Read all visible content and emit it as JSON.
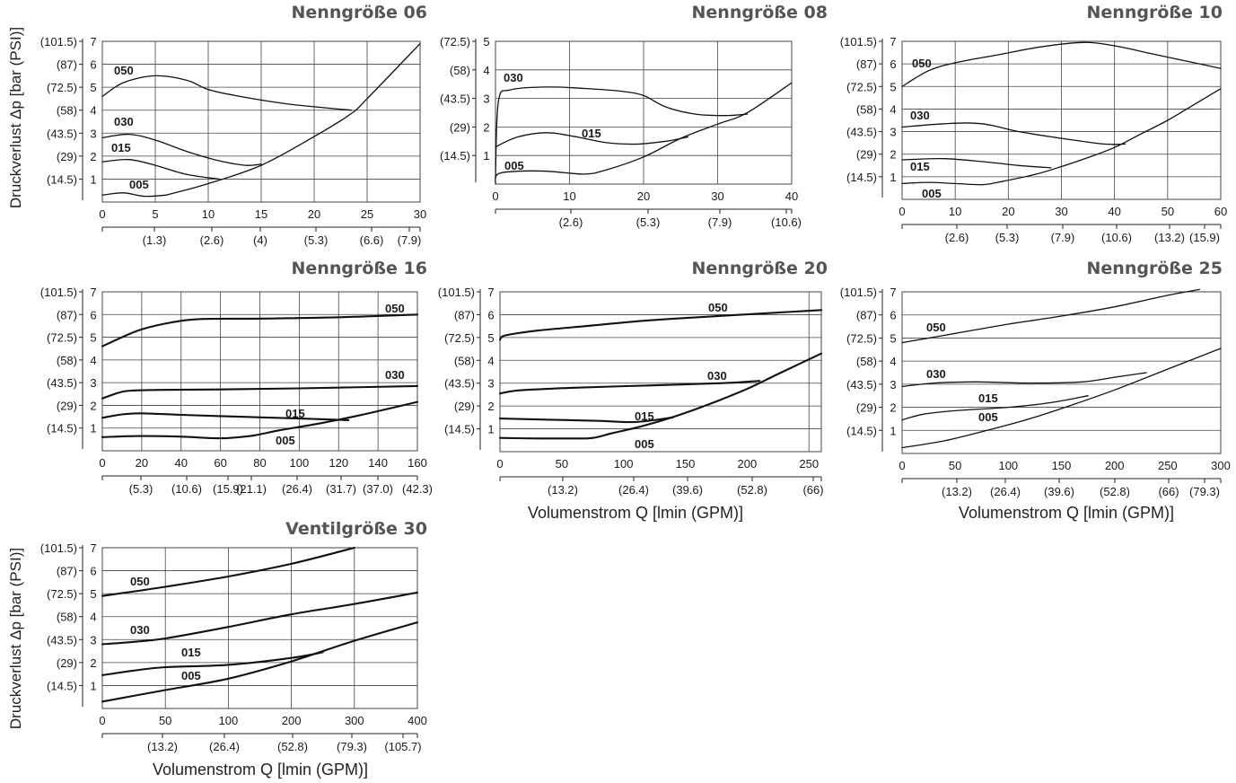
{
  "chart_data": [
    {
      "type": "line",
      "title": "Nenngröße 06",
      "ylabel": "Druckverlust Δp [bar (PSI)]",
      "xlabel": "",
      "xlim": [
        0,
        30
      ],
      "ylim": [
        0,
        7
      ],
      "x_ticks": [
        "0",
        "5",
        "10",
        "15",
        "20",
        "25",
        "30"
      ],
      "x_secondary_ticks": [
        "(1.3)",
        "(2.6)",
        "(4)",
        "(5.3)",
        "(6.6)",
        "(7.9)"
      ],
      "y_ticks": [
        "1",
        "2",
        "3",
        "4",
        "5",
        "6",
        "7"
      ],
      "y_secondary_ticks": [
        "(14.5)",
        "(29)",
        "(43.5)",
        "(58)",
        "(72.5)",
        "(87)",
        "(101.5)"
      ],
      "series": [
        {
          "name": "050",
          "x": [
            0,
            2,
            5,
            8,
            10,
            13,
            17,
            20,
            23.5
          ],
          "y": [
            4.6,
            5.2,
            5.5,
            5.3,
            4.9,
            4.6,
            4.3,
            4.15,
            4.0
          ]
        },
        {
          "name": "030",
          "x": [
            0,
            2.5,
            5,
            8,
            11,
            13.5,
            15
          ],
          "y": [
            2.8,
            2.95,
            2.7,
            2.2,
            1.8,
            1.6,
            1.65
          ]
        },
        {
          "name": "015",
          "x": [
            0,
            2.5,
            5,
            8,
            11
          ],
          "y": [
            1.75,
            1.85,
            1.6,
            1.2,
            1.0
          ]
        },
        {
          "name": "005",
          "x": [
            0,
            2,
            4,
            6
          ],
          "y": [
            0.3,
            0.4,
            0.25,
            0.3
          ]
        },
        {
          "name": "",
          "x": [
            6,
            10,
            15,
            20,
            23.5,
            25,
            30
          ],
          "y": [
            0.3,
            0.8,
            1.6,
            2.85,
            3.85,
            4.5,
            6.9
          ]
        }
      ]
    },
    {
      "type": "line",
      "title": "Nenngröße 08",
      "xlabel": "",
      "xlim": [
        0,
        40
      ],
      "ylim": [
        0,
        5
      ],
      "x_ticks": [
        "0",
        "10",
        "20",
        "30",
        "40"
      ],
      "x_secondary_ticks": [
        "(2.6)",
        "(5.3)",
        "(7.9)",
        "(10.6)"
      ],
      "y_ticks": [
        "1",
        "2",
        "3",
        "4",
        "5"
      ],
      "y_secondary_ticks": [
        "(14.5)",
        "(29)",
        "(43.5)",
        "(58)",
        "(72.5)"
      ],
      "series": [
        {
          "name": "030",
          "x": [
            0,
            0.4,
            2,
            7,
            12,
            17,
            20,
            23,
            27,
            31,
            34
          ],
          "y": [
            0.2,
            2.9,
            3.3,
            3.4,
            3.35,
            3.25,
            3.1,
            2.7,
            2.45,
            2.4,
            2.45
          ]
        },
        {
          "name": "015",
          "x": [
            0,
            3,
            7,
            11,
            15,
            19,
            23,
            26
          ],
          "y": [
            1.3,
            1.65,
            1.8,
            1.65,
            1.45,
            1.4,
            1.5,
            1.65
          ]
        },
        {
          "name": "005",
          "x": [
            0,
            0.3,
            3,
            7,
            12,
            15,
            20,
            25,
            30,
            34,
            40
          ],
          "y": [
            0,
            0.35,
            0.45,
            0.45,
            0.35,
            0.5,
            0.95,
            1.6,
            2.1,
            2.5,
            3.55
          ]
        }
      ]
    },
    {
      "type": "line",
      "title": "Nenngröße 10",
      "xlabel": "",
      "xlim": [
        0,
        60
      ],
      "ylim": [
        0,
        7
      ],
      "x_ticks": [
        "0",
        "10",
        "20",
        "30",
        "40",
        "50",
        "60"
      ],
      "x_secondary_ticks": [
        "(2.6)",
        "(5.3)",
        "(7.9)",
        "(10.6)",
        "(13.2)",
        "(15.9)"
      ],
      "y_ticks": [
        "1",
        "2",
        "3",
        "4",
        "5",
        "6",
        "7"
      ],
      "y_secondary_ticks": [
        "(14.5)",
        "(29)",
        "(43.5)",
        "(58)",
        "(72.5)",
        "(87)",
        "(101.5)"
      ],
      "series": [
        {
          "name": "050",
          "x": [
            0,
            5,
            10,
            18,
            26,
            34,
            40,
            46,
            54,
            60
          ],
          "y": [
            5.0,
            5.7,
            6.05,
            6.4,
            6.75,
            6.95,
            6.8,
            6.5,
            6.1,
            5.8
          ]
        },
        {
          "name": "030",
          "x": [
            0,
            8,
            15,
            22,
            30,
            38,
            42
          ],
          "y": [
            3.2,
            3.35,
            3.35,
            3.0,
            2.7,
            2.45,
            2.45
          ]
        },
        {
          "name": "015",
          "x": [
            0,
            8,
            16,
            22,
            28
          ],
          "y": [
            1.75,
            1.8,
            1.65,
            1.5,
            1.4
          ]
        },
        {
          "name": "005",
          "x": [
            0,
            5,
            10,
            15,
            18
          ],
          "y": [
            0.7,
            0.75,
            0.7,
            0.65,
            0.75
          ]
        },
        {
          "name": "",
          "x": [
            18,
            25,
            30,
            35,
            40,
            45,
            50,
            55,
            60
          ],
          "y": [
            0.75,
            1.1,
            1.45,
            1.85,
            2.3,
            2.9,
            3.5,
            4.2,
            4.9
          ]
        }
      ]
    },
    {
      "type": "line",
      "title": "Nenngröße 16",
      "xlabel": "",
      "xlim": [
        0,
        160
      ],
      "ylim": [
        0,
        7
      ],
      "x_ticks": [
        "0",
        "20",
        "40",
        "60",
        "80",
        "100",
        "120",
        "140",
        "160"
      ],
      "x_secondary_ticks": [
        "(5.3)",
        "(10.6)",
        "(15.9)",
        "(21.1)",
        "(26.4)",
        "(31.7)",
        "(37.0)",
        "(42.3)"
      ],
      "y_ticks": [
        "1",
        "2",
        "3",
        "4",
        "5",
        "6",
        "7"
      ],
      "y_secondary_ticks": [
        "(14.5)",
        "(29)",
        "(43.5)",
        "(58)",
        "(72.5)",
        "(87)",
        "(101.5)"
      ],
      "series": [
        {
          "name": "050",
          "x": [
            0,
            10,
            20,
            35,
            50,
            80,
            120,
            160
          ],
          "y": [
            4.6,
            5.0,
            5.35,
            5.65,
            5.8,
            5.82,
            5.88,
            6.0
          ]
        },
        {
          "name": "030",
          "x": [
            0,
            8,
            15,
            30,
            60,
            100,
            160
          ],
          "y": [
            2.3,
            2.55,
            2.65,
            2.68,
            2.7,
            2.75,
            2.85
          ]
        },
        {
          "name": "015",
          "x": [
            0,
            10,
            20,
            40,
            70,
            100,
            125
          ],
          "y": [
            1.45,
            1.6,
            1.65,
            1.58,
            1.5,
            1.42,
            1.35
          ]
        },
        {
          "name": "005",
          "x": [
            0,
            20,
            40,
            60,
            75,
            90,
            110,
            130,
            160
          ],
          "y": [
            0.6,
            0.65,
            0.62,
            0.55,
            0.65,
            0.9,
            1.2,
            1.55,
            2.15
          ]
        }
      ]
    },
    {
      "type": "line",
      "title": "Nenngröße 20",
      "xlabel": "Volumenstrom Q [lmin (GPM)]",
      "xlim": [
        0,
        260
      ],
      "ylim": [
        0,
        7
      ],
      "x_ticks": [
        "0",
        "50",
        "100",
        "150",
        "200",
        "250"
      ],
      "x_secondary_ticks": [
        "(13.2)",
        "(26.4)",
        "(39.6)",
        "(52.8)",
        "(66)"
      ],
      "y_ticks": [
        "1",
        "2",
        "3",
        "4",
        "5",
        "6",
        "7"
      ],
      "y_secondary_ticks": [
        "(14.5)",
        "(29)",
        "(43.5)",
        "(58)",
        "(72.5)",
        "(87)",
        "(101.5)"
      ],
      "series": [
        {
          "name": "050",
          "x": [
            0,
            2,
            10,
            30,
            70,
            120,
            180,
            260
          ],
          "y": [
            4.9,
            5.05,
            5.15,
            5.3,
            5.5,
            5.75,
            5.95,
            6.2
          ]
        },
        {
          "name": "030",
          "x": [
            0,
            10,
            20,
            60,
            120,
            180,
            210
          ],
          "y": [
            2.55,
            2.65,
            2.7,
            2.8,
            2.9,
            3.0,
            3.1
          ]
        },
        {
          "name": "015",
          "x": [
            0,
            40,
            80,
            110,
            140
          ],
          "y": [
            1.45,
            1.4,
            1.35,
            1.3,
            1.5
          ]
        },
        {
          "name": "005",
          "x": [
            0,
            30,
            60,
            75,
            90,
            110,
            130,
            150,
            175,
            200,
            225,
            260
          ],
          "y": [
            0.6,
            0.58,
            0.58,
            0.6,
            0.8,
            1.05,
            1.35,
            1.7,
            2.2,
            2.75,
            3.4,
            4.3
          ]
        }
      ]
    },
    {
      "type": "line",
      "title": "Nenngröße 25",
      "xlabel": "Volumenstrom Q [lmin (GPM)]",
      "xlim": [
        0,
        300
      ],
      "ylim": [
        0,
        7
      ],
      "x_ticks": [
        "0",
        "50",
        "100",
        "150",
        "200",
        "250",
        "300"
      ],
      "x_secondary_ticks": [
        "(13.2)",
        "(26.4)",
        "(39.6)",
        "(52.8)",
        "(66)",
        "(79.3)"
      ],
      "y_ticks": [
        "1",
        "2",
        "3",
        "4",
        "5",
        "6",
        "7"
      ],
      "y_secondary_ticks": [
        "(14.5)",
        "(29)",
        "(43.5)",
        "(58)",
        "(72.5)",
        "(87)",
        "(101.5)"
      ],
      "series": [
        {
          "name": "050",
          "x": [
            0,
            50,
            100,
            150,
            200,
            250,
            280
          ],
          "y": [
            4.8,
            5.2,
            5.6,
            5.95,
            6.35,
            6.85,
            7.1
          ]
        },
        {
          "name": "030",
          "x": [
            0,
            30,
            70,
            120,
            170,
            200,
            230
          ],
          "y": [
            2.9,
            3.05,
            3.1,
            3.05,
            3.1,
            3.3,
            3.5
          ]
        },
        {
          "name": "015",
          "x": [
            0,
            20,
            50,
            100,
            140,
            175
          ],
          "y": [
            1.45,
            1.7,
            1.85,
            2.0,
            2.2,
            2.5
          ]
        },
        {
          "name": "005",
          "x": [
            0,
            40,
            80,
            120,
            160,
            200,
            250,
            300
          ],
          "y": [
            0.25,
            0.55,
            1.0,
            1.5,
            2.1,
            2.75,
            3.65,
            4.55
          ]
        }
      ]
    },
    {
      "type": "line",
      "title": "Ventilgröße 30",
      "ylabel": "Druckverlust Δp [bar (PSI)]",
      "xlabel": "Volumenstrom Q [lmin (GPM)]",
      "x_tick_values": [
        0,
        50,
        100,
        200,
        300,
        400
      ],
      "xlim": [
        0,
        400
      ],
      "ylim": [
        0,
        7
      ],
      "x_ticks": [
        "0",
        "50",
        "100",
        "200",
        "300",
        "400"
      ],
      "x_secondary_ticks": [
        "(13.2)",
        "(26.4)",
        "(52.8)",
        "(79.3)",
        "(105.7)"
      ],
      "y_ticks": [
        "1",
        "2",
        "3",
        "4",
        "5",
        "6",
        "7"
      ],
      "y_secondary_ticks": [
        "(14.5)",
        "(29)",
        "(43.5)",
        "(58)",
        "(72.5)",
        "(87)",
        "(101.5)"
      ],
      "series": [
        {
          "name": "050",
          "x": [
            0,
            50,
            100,
            200,
            300
          ],
          "y": [
            4.9,
            5.3,
            5.75,
            6.3,
            7.0
          ]
        },
        {
          "name": "030",
          "x": [
            0,
            25,
            50,
            100,
            200,
            300,
            400
          ],
          "y": [
            2.8,
            2.9,
            3.05,
            3.55,
            4.1,
            4.55,
            5.05
          ]
        },
        {
          "name": "015",
          "x": [
            0,
            25,
            50,
            100,
            200,
            250
          ],
          "y": [
            1.45,
            1.65,
            1.8,
            1.9,
            2.2,
            2.45
          ]
        },
        {
          "name": "005",
          "x": [
            0,
            25,
            50,
            100,
            200,
            300,
            400
          ],
          "y": [
            0.3,
            0.55,
            0.8,
            1.3,
            2.05,
            2.95,
            3.75
          ]
        }
      ]
    }
  ]
}
